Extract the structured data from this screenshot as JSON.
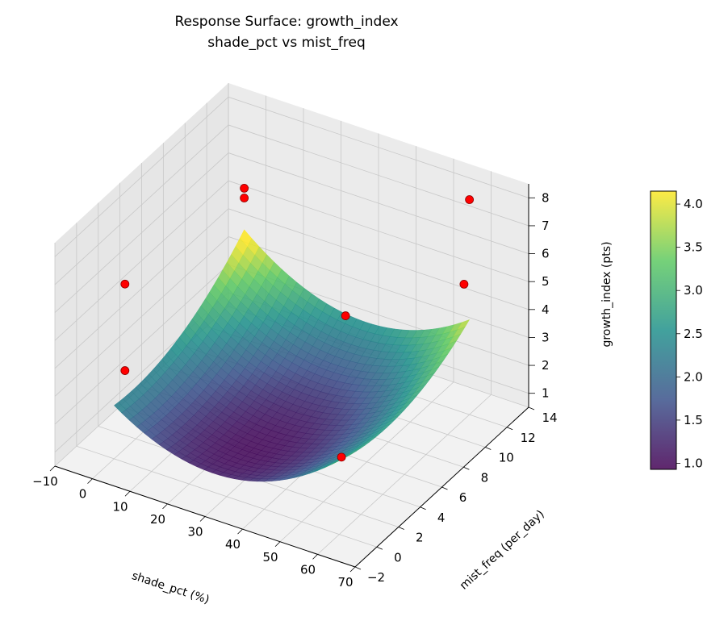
{
  "chart_data": {
    "type": "surface3d",
    "title": "Response Surface: growth_index",
    "subtitle": "shade_pct vs mist_freq",
    "xlabel": "shade_pct (%)",
    "ylabel": "mist_freq (per_day)",
    "zlabel": "growth_index (pts)",
    "xlim": [
      -10,
      70
    ],
    "ylim": [
      -2,
      14
    ],
    "zlim": [
      0.5,
      8.5
    ],
    "xticks": [
      -10,
      0,
      10,
      20,
      30,
      40,
      50,
      60,
      70
    ],
    "yticks": [
      -2,
      0,
      2,
      4,
      6,
      8,
      10,
      12,
      14
    ],
    "zticks": [
      1,
      2,
      3,
      4,
      5,
      6,
      7,
      8
    ],
    "surface": {
      "x_range": [
        0,
        60
      ],
      "y_range": [
        0,
        12
      ],
      "model": "z = 1 + 1.8u^2 + 1.6v^2 - 0.5uv, u=(x-28)/32, v=(y-3)/9",
      "colormap": "viridis",
      "clim": [
        0.93,
        4.15
      ]
    },
    "scatter": {
      "color": "#ff0000",
      "edge": "#8b0000",
      "points": [
        [
          0,
          12,
          5.9
        ],
        [
          0,
          12,
          5.55
        ],
        [
          60,
          12,
          8.2
        ],
        [
          0,
          1,
          6.4
        ],
        [
          60,
          11.5,
          5.35
        ],
        [
          27,
          12,
          2.55
        ],
        [
          0,
          1,
          3.3
        ],
        [
          47,
          4.7,
          1.0
        ]
      ]
    },
    "colorbar": {
      "ticks": [
        "1.0",
        "1.5",
        "2.0",
        "2.5",
        "3.0",
        "3.5",
        "4.0"
      ],
      "range": [
        0.93,
        4.15
      ]
    },
    "grid": true
  }
}
